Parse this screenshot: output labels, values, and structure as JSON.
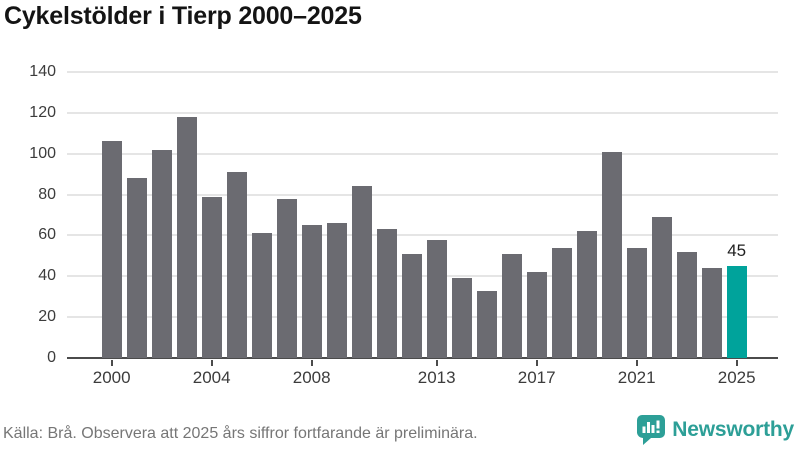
{
  "title": "Cykelstölder i Tierp 2000–2025",
  "chart_data": {
    "type": "bar",
    "title": "Cykelstölder i Tierp 2000–2025",
    "categories": [
      2000,
      2001,
      2002,
      2003,
      2004,
      2005,
      2006,
      2007,
      2008,
      2009,
      2010,
      2011,
      2012,
      2013,
      2014,
      2015,
      2016,
      2017,
      2018,
      2019,
      2020,
      2021,
      2022,
      2023,
      2024,
      2025
    ],
    "values": [
      106,
      88,
      102,
      118,
      79,
      91,
      61,
      78,
      65,
      66,
      84,
      63,
      51,
      58,
      39,
      33,
      51,
      42,
      54,
      62,
      101,
      54,
      69,
      52,
      44,
      45
    ],
    "ylim": [
      0,
      140
    ],
    "y_ticks": [
      0,
      20,
      40,
      60,
      80,
      100,
      120,
      140
    ],
    "x_tick_labels": [
      "2000",
      "2004",
      "2008",
      "2013",
      "2017",
      "2021",
      "2025"
    ],
    "grid": true,
    "legend": "none",
    "bar_color": "#6b6b71",
    "highlight_category": 2025,
    "highlight_color": "#00a39b",
    "annotation": {
      "text": "45",
      "category": 2025
    }
  },
  "footer": {
    "source_note": "Källa: Brå. Observera att 2025 års siffror fortfarande är preliminära.",
    "brand": "Newsworthy",
    "brand_color": "#2d9f97"
  }
}
